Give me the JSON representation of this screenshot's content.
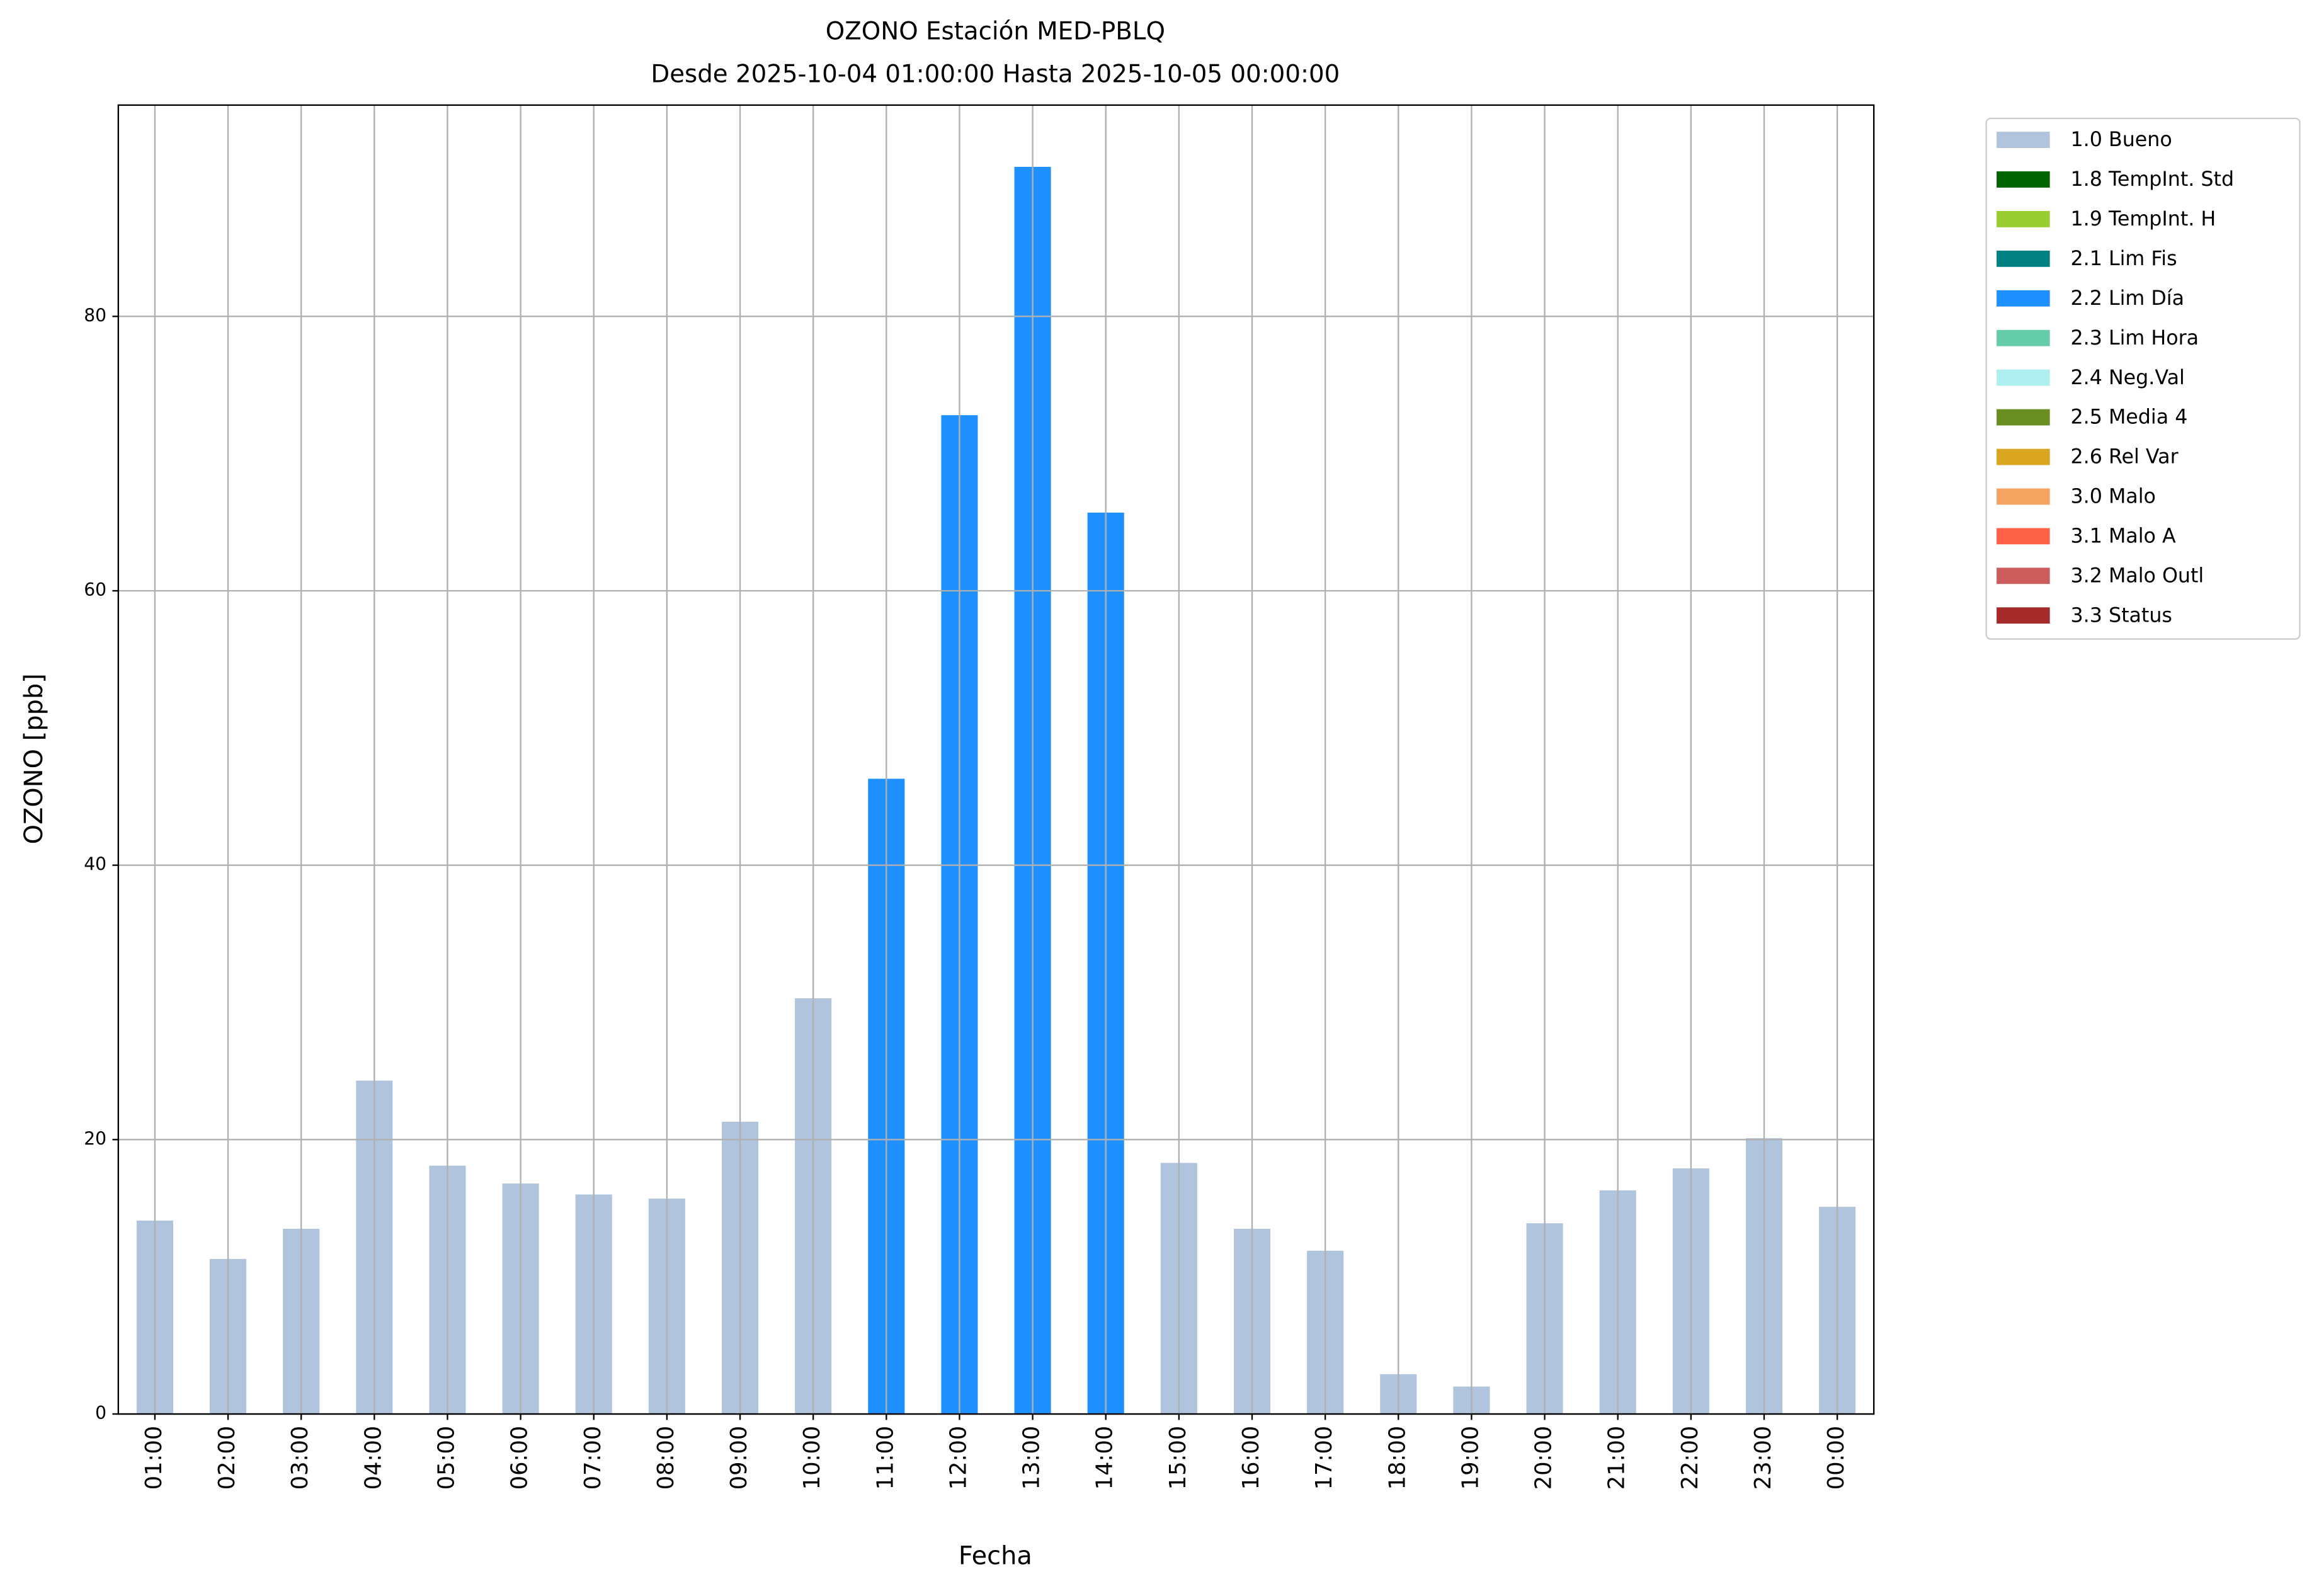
{
  "chart_data": {
    "type": "bar",
    "stacked": true,
    "title": "OZONO Estación MED-PBLQ",
    "subtitle": "Desde 2025-10-04 01:00:00 Hasta 2025-10-05 00:00:00",
    "x_label": "Fecha",
    "y_label": "OZONO [ppb]",
    "categories": [
      "01:00",
      "02:00",
      "03:00",
      "04:00",
      "05:00",
      "06:00",
      "07:00",
      "08:00",
      "09:00",
      "10:00",
      "11:00",
      "12:00",
      "13:00",
      "14:00",
      "15:00",
      "16:00",
      "17:00",
      "18:00",
      "19:00",
      "20:00",
      "21:00",
      "22:00",
      "23:00",
      "00:00"
    ],
    "series": [
      {
        "name": "1.0 Bueno",
        "color": "#b0c4de",
        "values": [
          14.1,
          11.3,
          13.5,
          24.3,
          18.1,
          16.8,
          16.0,
          15.7,
          21.3,
          30.3,
          null,
          null,
          null,
          null,
          18.3,
          13.5,
          11.9,
          2.9,
          2.0,
          13.9,
          16.3,
          17.9,
          20.1,
          15.1
        ]
      },
      {
        "name": "1.8 TempInt. Std",
        "color": "#006400",
        "values": [
          null,
          null,
          null,
          null,
          null,
          null,
          null,
          null,
          null,
          null,
          null,
          null,
          null,
          null,
          null,
          null,
          null,
          null,
          null,
          null,
          null,
          null,
          null,
          null
        ]
      },
      {
        "name": "1.9 TempInt. H",
        "color": "#9acd32",
        "values": [
          null,
          null,
          null,
          null,
          null,
          null,
          null,
          null,
          null,
          null,
          null,
          null,
          null,
          null,
          null,
          null,
          null,
          null,
          null,
          null,
          null,
          null,
          null,
          null
        ]
      },
      {
        "name": "2.1 Lim Fis",
        "color": "#008080",
        "values": [
          null,
          null,
          null,
          null,
          null,
          null,
          null,
          null,
          null,
          null,
          null,
          null,
          null,
          null,
          null,
          null,
          null,
          null,
          null,
          null,
          null,
          null,
          null,
          null
        ]
      },
      {
        "name": "2.2 Lim Día",
        "color": "#1e90ff",
        "values": [
          null,
          null,
          null,
          null,
          null,
          null,
          null,
          null,
          null,
          null,
          46.3,
          72.8,
          90.9,
          65.7,
          null,
          null,
          null,
          null,
          null,
          null,
          null,
          null,
          null,
          null
        ]
      },
      {
        "name": "2.3 Lim Hora",
        "color": "#66cdaa",
        "values": [
          null,
          null,
          null,
          null,
          null,
          null,
          null,
          null,
          null,
          null,
          null,
          null,
          null,
          null,
          null,
          null,
          null,
          null,
          null,
          null,
          null,
          null,
          null,
          null
        ]
      },
      {
        "name": "2.4 Neg.Val",
        "color": "#afeeee",
        "values": [
          null,
          null,
          null,
          null,
          null,
          null,
          null,
          null,
          null,
          null,
          null,
          null,
          null,
          null,
          null,
          null,
          null,
          null,
          null,
          null,
          null,
          null,
          null,
          null
        ]
      },
      {
        "name": "2.5 Media 4",
        "color": "#6b8e23",
        "values": [
          null,
          null,
          null,
          null,
          null,
          null,
          null,
          null,
          null,
          null,
          null,
          null,
          null,
          null,
          null,
          null,
          null,
          null,
          null,
          null,
          null,
          null,
          null,
          null
        ]
      },
      {
        "name": "2.6 Rel Var",
        "color": "#daa520",
        "values": [
          null,
          null,
          null,
          null,
          null,
          null,
          null,
          null,
          null,
          null,
          null,
          null,
          null,
          null,
          null,
          null,
          null,
          null,
          null,
          null,
          null,
          null,
          null,
          null
        ]
      },
      {
        "name": "3.0 Malo",
        "color": "#f4a460",
        "values": [
          null,
          null,
          null,
          null,
          null,
          null,
          null,
          null,
          null,
          null,
          null,
          null,
          null,
          null,
          null,
          null,
          null,
          null,
          null,
          null,
          null,
          null,
          null,
          null
        ]
      },
      {
        "name": "3.1 Malo A",
        "color": "#ff6347",
        "values": [
          null,
          null,
          null,
          null,
          null,
          null,
          null,
          null,
          null,
          null,
          null,
          null,
          null,
          null,
          null,
          null,
          null,
          null,
          null,
          null,
          null,
          null,
          null,
          null
        ]
      },
      {
        "name": "3.2 Malo Outl",
        "color": "#cd5c5c",
        "values": [
          null,
          null,
          null,
          null,
          null,
          null,
          null,
          null,
          null,
          null,
          null,
          null,
          null,
          null,
          null,
          null,
          null,
          null,
          null,
          null,
          null,
          null,
          null,
          null
        ]
      },
      {
        "name": "3.3 Status",
        "color": "#a52a2a",
        "values": [
          null,
          null,
          null,
          null,
          null,
          null,
          null,
          null,
          null,
          null,
          null,
          null,
          null,
          null,
          null,
          null,
          null,
          null,
          null,
          null,
          null,
          null,
          null,
          null
        ]
      }
    ],
    "ylim": [
      0,
      95.4
    ],
    "yticks": [
      0,
      20,
      40,
      60,
      80
    ],
    "grid": true,
    "legend": "right"
  }
}
